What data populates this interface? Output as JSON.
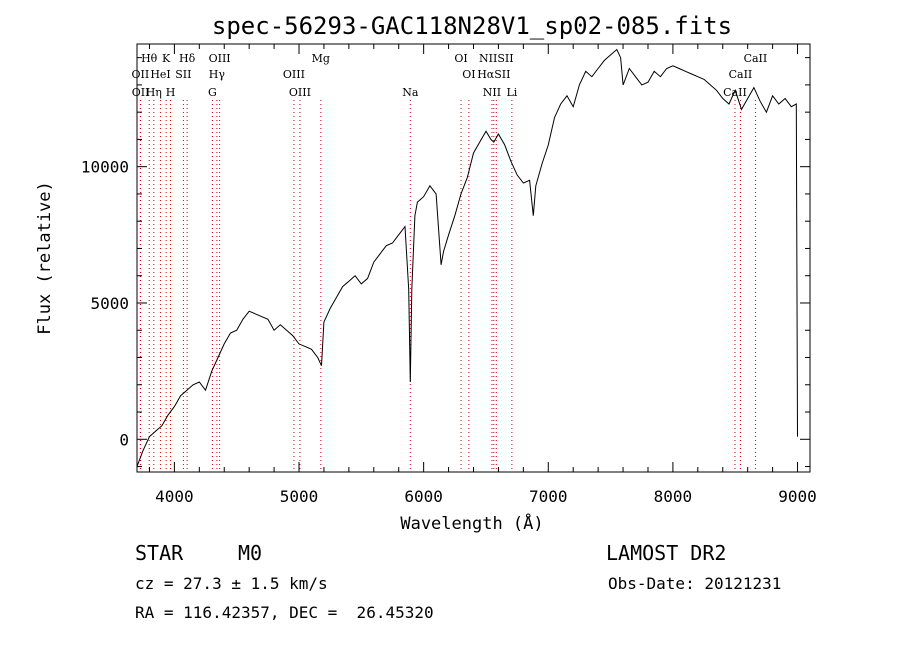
{
  "chart_data": {
    "type": "line",
    "title": "spec-56293-GAC118N28V1_sp02-085.fits",
    "xlabel": "Wavelength (Å)",
    "ylabel": "Flux (relative)",
    "xlim": [
      3700,
      9100
    ],
    "ylim": [
      -1200,
      14500
    ],
    "xticks": [
      4000,
      5000,
      6000,
      7000,
      8000,
      9000
    ],
    "yticks": [
      0,
      5000,
      10000
    ],
    "x_tick_labels": [
      "4000",
      "5000",
      "6000",
      "7000",
      "8000",
      "9000"
    ],
    "y_tick_labels": [
      "0",
      "5000",
      "10000"
    ],
    "series": [
      {
        "x": [
          3700,
          3750,
          3800,
          3850,
          3900,
          3950,
          4000,
          4050,
          4100,
          4150,
          4200,
          4250,
          4300,
          4350,
          4400,
          4450,
          4500,
          4550,
          4600,
          4650,
          4700,
          4750,
          4800,
          4850,
          4900,
          4950,
          5000,
          5050,
          5100,
          5150,
          5180,
          5200,
          5250,
          5300,
          5350,
          5400,
          5450,
          5500,
          5550,
          5600,
          5650,
          5700,
          5750,
          5800,
          5850,
          5880,
          5893,
          5905,
          5930,
          5950,
          6000,
          6050,
          6100,
          6140,
          6160,
          6200,
          6250,
          6300,
          6350,
          6400,
          6450,
          6500,
          6540,
          6563,
          6600,
          6650,
          6700,
          6750,
          6800,
          6850,
          6880,
          6900,
          6950,
          7000,
          7050,
          7100,
          7150,
          7200,
          7250,
          7300,
          7350,
          7400,
          7450,
          7500,
          7550,
          7580,
          7600,
          7650,
          7700,
          7750,
          7800,
          7850,
          7900,
          7950,
          8000,
          8050,
          8100,
          8150,
          8200,
          8250,
          8300,
          8350,
          8400,
          8450,
          8500,
          8550,
          8600,
          8650,
          8700,
          8750,
          8800,
          8850,
          8900,
          8950,
          8990,
          9000
        ],
        "y": [
          -1000,
          -400,
          100,
          300,
          500,
          900,
          1200,
          1600,
          1800,
          2000,
          2100,
          1800,
          2500,
          3000,
          3500,
          3900,
          4000,
          4400,
          4700,
          4600,
          4500,
          4400,
          4000,
          4200,
          4000,
          3800,
          3500,
          3400,
          3300,
          3000,
          2700,
          4300,
          4800,
          5200,
          5600,
          5800,
          6000,
          5700,
          5900,
          6500,
          6800,
          7100,
          7200,
          7500,
          7800,
          5500,
          2100,
          5500,
          8200,
          8700,
          8900,
          9300,
          9000,
          6400,
          6900,
          7500,
          8200,
          9000,
          9600,
          10500,
          10900,
          11300,
          11000,
          10900,
          11200,
          10800,
          10200,
          9700,
          9400,
          9500,
          8200,
          9300,
          10100,
          10800,
          11800,
          12300,
          12600,
          12200,
          13000,
          13500,
          13300,
          13600,
          13900,
          14100,
          14300,
          14000,
          13000,
          13600,
          13300,
          13000,
          13100,
          13500,
          13300,
          13600,
          13700,
          13600,
          13500,
          13400,
          13300,
          13200,
          13000,
          12800,
          12500,
          12300,
          12800,
          12100,
          12500,
          12900,
          12400,
          12000,
          12600,
          12300,
          12500,
          12200,
          12300,
          100
        ]
      }
    ],
    "line_markers": [
      {
        "name": "Hθ",
        "wave": 3798,
        "row": 0
      },
      {
        "name": "K",
        "wave": 3934,
        "row": 0
      },
      {
        "name": "Hδ",
        "wave": 4102,
        "row": 0
      },
      {
        "name": "OIII",
        "wave": 4363,
        "row": 0
      },
      {
        "name": "Mg",
        "wave": 5175,
        "row": 0
      },
      {
        "name": "OI",
        "wave": 6300,
        "row": 0
      },
      {
        "name": "NIISII",
        "wave": 6583,
        "row": 0
      },
      {
        "name": "CaII",
        "wave": 8662,
        "row": 0
      },
      {
        "name": "OII",
        "wave": 3727,
        "row": 1
      },
      {
        "name": "HeI",
        "wave": 3889,
        "row": 1
      },
      {
        "name": "SII",
        "wave": 4072,
        "row": 1
      },
      {
        "name": "Hγ",
        "wave": 4341,
        "row": 1
      },
      {
        "name": "OIII",
        "wave": 4959,
        "row": 1
      },
      {
        "name": "OI",
        "wave": 6363,
        "row": 1
      },
      {
        "name": "HαSII",
        "wave": 6563,
        "row": 1
      },
      {
        "name": "CaII",
        "wave": 8542,
        "row": 1
      },
      {
        "name": "OII",
        "wave": 3729,
        "row": 2
      },
      {
        "name": "Hη",
        "wave": 3835,
        "row": 2
      },
      {
        "name": "H",
        "wave": 3969,
        "row": 2
      },
      {
        "name": "G",
        "wave": 4305,
        "row": 2
      },
      {
        "name": "OIII",
        "wave": 5007,
        "row": 2
      },
      {
        "name": "Na",
        "wave": 5893,
        "row": 2
      },
      {
        "name": "NII",
        "wave": 6548,
        "row": 2
      },
      {
        "name": "Li",
        "wave": 6708,
        "row": 2
      },
      {
        "name": "CaII",
        "wave": 8498,
        "row": 2
      }
    ]
  },
  "info": {
    "object_class": "STAR",
    "subclass": "M0",
    "survey": "LAMOST DR2",
    "redshift": "cz = 27.3 ± 1.5 km/s",
    "obs_date": "Obs-Date: 20121231",
    "coords": "RA = 116.42357, DEC =  26.45320"
  }
}
